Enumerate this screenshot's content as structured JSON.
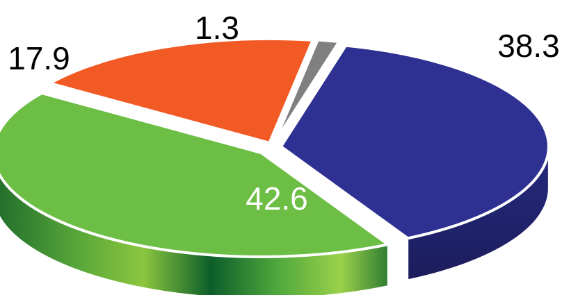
{
  "chart_data": {
    "type": "pie",
    "style": "3d-exploded",
    "title": "",
    "slices": [
      {
        "value": 38.3,
        "label": "38.3",
        "color": "#2e3192",
        "side_color": "#1f2268",
        "label_color": "#000000"
      },
      {
        "value": 42.6,
        "label": "42.6",
        "color": "#6cbe45",
        "side_color": "#2c7a31",
        "label_color": "#ffffff"
      },
      {
        "value": 17.9,
        "label": "17.9",
        "color": "#f15a24",
        "side_color": "#b8431a",
        "label_color": "#000000"
      },
      {
        "value": 1.3,
        "label": "1.3",
        "color": "#808080",
        "side_color": "#5a5a5a",
        "label_color": "#000000"
      }
    ],
    "legend": "none",
    "grid": false
  }
}
